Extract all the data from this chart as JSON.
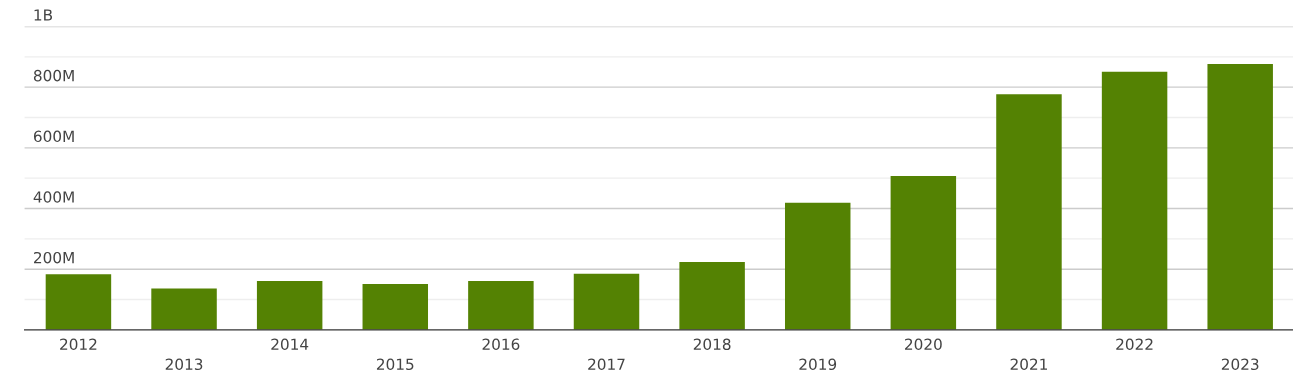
{
  "chart_data": {
    "type": "bar",
    "categories": [
      "2012",
      "2013",
      "2014",
      "2015",
      "2016",
      "2017",
      "2018",
      "2019",
      "2020",
      "2021",
      "2022",
      "2023"
    ],
    "values": [
      183000000,
      136000000,
      161000000,
      151000000,
      161000000,
      185000000,
      224000000,
      419000000,
      507000000,
      777000000,
      851000000,
      876000000
    ],
    "color": "#548203",
    "ylim": [
      0,
      1000000000
    ],
    "yticks": [
      {
        "value": 0,
        "label": null
      },
      {
        "value": 100000000,
        "label": null
      },
      {
        "value": 200000000,
        "label": "200M"
      },
      {
        "value": 300000000,
        "label": null
      },
      {
        "value": 400000000,
        "label": "400M"
      },
      {
        "value": 500000000,
        "label": null
      },
      {
        "value": 600000000,
        "label": "600M"
      },
      {
        "value": 700000000,
        "label": null
      },
      {
        "value": 800000000,
        "label": "800M"
      },
      {
        "value": 900000000,
        "label": null
      },
      {
        "value": 1000000000,
        "label": "1B"
      }
    ],
    "grid": "y"
  }
}
